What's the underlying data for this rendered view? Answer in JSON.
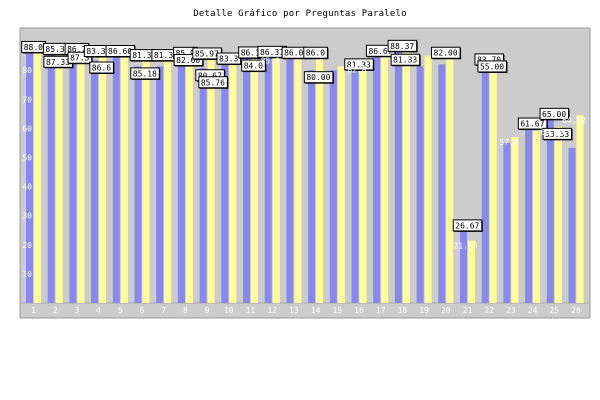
{
  "chart_data": {
    "type": "bar",
    "title": "Detalle Gráfico por Preguntas Paralelo",
    "xlabel": "",
    "ylabel": "",
    "ylim": [
      0,
      100
    ],
    "yticks": [
      10,
      20,
      30,
      40,
      50,
      60,
      70,
      80
    ],
    "grid": false,
    "legend": "none",
    "colors": {
      "plot_bg": "#cccccc",
      "series_a": "#8888ee",
      "series_b": "#ffff99"
    },
    "categories": [
      "1",
      "2",
      "3",
      "4",
      "5",
      "6",
      "7",
      "8",
      "9",
      "10",
      "11",
      "12",
      "13",
      "14",
      "15",
      "16",
      "17",
      "18",
      "19",
      "20",
      "21",
      "22",
      "23",
      "24",
      "25",
      "26"
    ],
    "series": [
      {
        "name": "",
        "values": [
          88.0,
          85.3,
          86.7,
          83.33,
          86.6,
          81.3,
          81.3,
          85.9,
          80.67,
          83.3,
          86.1,
          86.31,
          86.0,
          80.0,
          80.0,
          81.33,
          86.67,
          88.37,
          81.33,
          82.0,
          26.67,
          83.7,
          55.0,
          61.67,
          65.0,
          53.33
        ]
      },
      {
        "name": "",
        "values": [
          87.3,
          87.33,
          87.3,
          86.6,
          86.6,
          85.18,
          85.18,
          85.97,
          85.76,
          84.0,
          84.0,
          85.0,
          85.0,
          86.0,
          81.33,
          82.0,
          86.67,
          86.0,
          85.0,
          86.0,
          21.43,
          83.7,
          57.0,
          59.0,
          60.53,
          64.52
        ]
      }
    ],
    "labels_boxed": [
      {
        "cat": 1,
        "text": "88.0"
      },
      {
        "cat": 2,
        "text": "85.3"
      },
      {
        "cat": 2,
        "text": "87.33"
      },
      {
        "cat": 3,
        "text": "86.7"
      },
      {
        "cat": 3,
        "text": "87.3"
      },
      {
        "cat": 4,
        "text": "83.33"
      },
      {
        "cat": 4,
        "text": "86.6"
      },
      {
        "cat": 5,
        "text": "86.60"
      },
      {
        "cat": 6,
        "text": "81.3"
      },
      {
        "cat": 6,
        "text": "85.18"
      },
      {
        "cat": 7,
        "text": "81.3"
      },
      {
        "cat": 8,
        "text": "85.9"
      },
      {
        "cat": 8,
        "text": "82.00"
      },
      {
        "cat": 9,
        "text": "85.97"
      },
      {
        "cat": 9,
        "text": "80.67"
      },
      {
        "cat": 9,
        "text": "85.76"
      },
      {
        "cat": 10,
        "text": "83.3"
      },
      {
        "cat": 11,
        "text": "86.1"
      },
      {
        "cat": 11,
        "text": "84.0"
      },
      {
        "cat": 12,
        "text": "86.31"
      },
      {
        "cat": 13,
        "text": "86.0"
      },
      {
        "cat": 14,
        "text": "86.0"
      },
      {
        "cat": 14,
        "text": "80.00"
      },
      {
        "cat": 16,
        "text": "81.33"
      },
      {
        "cat": 17,
        "text": "86.67"
      },
      {
        "cat": 18,
        "text": "88.37"
      },
      {
        "cat": 18,
        "text": "81.33"
      },
      {
        "cat": 20,
        "text": "82.00"
      },
      {
        "cat": 21,
        "text": "26.67"
      },
      {
        "cat": 22,
        "text": "83.70"
      },
      {
        "cat": 22,
        "text": "55.00"
      },
      {
        "cat": 24,
        "text": "61.67"
      },
      {
        "cat": 25,
        "text": "65.00"
      },
      {
        "cat": 25,
        "text": "53.33"
      }
    ],
    "labels_plain": [
      {
        "cat": 12,
        "text": "85.0"
      },
      {
        "cat": 16,
        "text": "82.0"
      },
      {
        "cat": 21,
        "text": "21.43"
      },
      {
        "cat": 23,
        "text": "57.0"
      },
      {
        "cat": 25,
        "text": "60.53"
      },
      {
        "cat": 26,
        "text": "64.52"
      }
    ]
  }
}
